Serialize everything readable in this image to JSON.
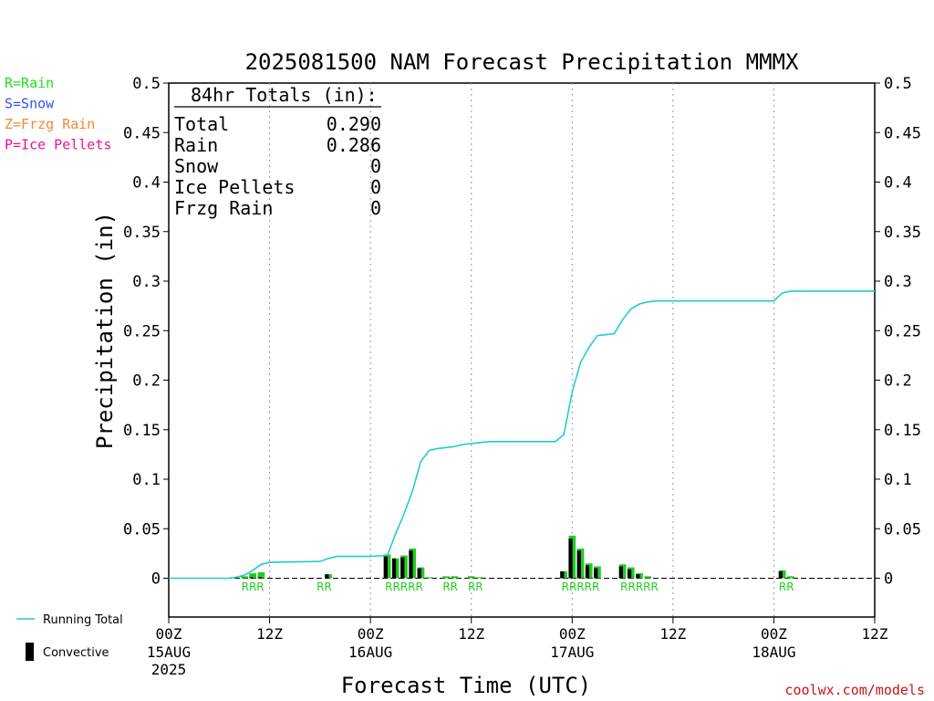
{
  "chart_data": {
    "type": "bar",
    "title": "2025081500 NAM Forecast Precipitation MMMX",
    "xlabel": "Forecast Time (UTC)",
    "ylabel": "Precipitation (in)",
    "ylim": [
      0,
      0.5
    ],
    "xlim_hours": [
      0,
      84
    ],
    "yticks": [
      "0",
      "0.05",
      "0.1",
      "0.15",
      "0.2",
      "0.25",
      "0.3",
      "0.35",
      "0.4",
      "0.45",
      "0.5"
    ],
    "xticks": [
      {
        "hour": 0,
        "label": "00Z",
        "date": "15AUG",
        "year": "2025"
      },
      {
        "hour": 12,
        "label": "12Z",
        "date": "",
        "year": ""
      },
      {
        "hour": 24,
        "label": "00Z",
        "date": "16AUG",
        "year": ""
      },
      {
        "hour": 36,
        "label": "12Z",
        "date": "",
        "year": ""
      },
      {
        "hour": 48,
        "label": "00Z",
        "date": "17AUG",
        "year": ""
      },
      {
        "hour": 60,
        "label": "12Z",
        "date": "",
        "year": ""
      },
      {
        "hour": 72,
        "label": "00Z",
        "date": "18AUG",
        "year": ""
      },
      {
        "hour": 84,
        "label": "12Z",
        "date": "",
        "year": ""
      }
    ],
    "grid": "vertical dotted at 12Z and 00Z",
    "legend_placement": "left",
    "precip_type_legend": [
      {
        "text": "R=Rain",
        "color": "#22dd22"
      },
      {
        "text": "S=Snow",
        "color": "#3355ee"
      },
      {
        "text": "Z=Frzg Rain",
        "color": "#ee8833"
      },
      {
        "text": "P=Ice Pellets",
        "color": "#ee1199"
      }
    ],
    "series_legend": [
      {
        "text": "Running Total",
        "color": "#22cccc",
        "kind": "line"
      },
      {
        "text": "Convective",
        "color": "#000000",
        "kind": "bar"
      }
    ],
    "totals_box": {
      "header": "84hr Totals (in):",
      "rows": [
        {
          "label": "Total",
          "value": "0.290"
        },
        {
          "label": "Rain",
          "value": "0.286"
        },
        {
          "label": "Snow",
          "value": "0"
        },
        {
          "label": "Ice Pellets",
          "value": "0"
        },
        {
          "label": "Frzg Rain",
          "value": "0"
        }
      ]
    },
    "bars": {
      "hours": [
        9,
        10,
        11,
        19,
        26,
        27,
        28,
        29,
        30,
        31,
        33,
        34,
        36,
        37,
        47,
        48,
        49,
        50,
        51,
        54,
        55,
        56,
        57,
        73,
        74
      ],
      "total": [
        0.002,
        0.005,
        0.006,
        0.004,
        0.024,
        0.02,
        0.023,
        0.03,
        0.011,
        0.001,
        0.002,
        0.002,
        0.002,
        0.001,
        0.007,
        0.043,
        0.03,
        0.015,
        0.012,
        0.014,
        0.011,
        0.005,
        0.002,
        0.008,
        0.002
      ],
      "convective": [
        0,
        0.001,
        0.001,
        0.004,
        0.022,
        0.02,
        0.021,
        0.028,
        0.01,
        0,
        0,
        0,
        0,
        0,
        0.007,
        0.04,
        0.028,
        0.013,
        0.01,
        0.012,
        0.009,
        0.004,
        0,
        0.007,
        0
      ],
      "color": "#22cc22",
      "convective_color": "#000000"
    },
    "running_total": {
      "hours": [
        0,
        7,
        8,
        9,
        10,
        11,
        12,
        18,
        19,
        20,
        24,
        26,
        27,
        28,
        29,
        30,
        31,
        32,
        33,
        34,
        35,
        36,
        37,
        38,
        46,
        47,
        48,
        49,
        50,
        51,
        52,
        53,
        54,
        55,
        56,
        57,
        58,
        59,
        60,
        71,
        72,
        73,
        74,
        84
      ],
      "values": [
        0,
        0,
        0.001,
        0.003,
        0.008,
        0.014,
        0.016,
        0.017,
        0.02,
        0.022,
        0.022,
        0.023,
        0.045,
        0.065,
        0.088,
        0.118,
        0.129,
        0.131,
        0.132,
        0.133,
        0.135,
        0.136,
        0.137,
        0.138,
        0.138,
        0.145,
        0.188,
        0.218,
        0.233,
        0.245,
        0.246,
        0.247,
        0.261,
        0.272,
        0.277,
        0.279,
        0.28,
        0.28,
        0.28,
        0.28,
        0.28,
        0.288,
        0.29,
        0.29
      ],
      "color": "#22cccc"
    },
    "type_labels": [
      {
        "hour_start": 9,
        "hour_end": 11,
        "text": "RRR"
      },
      {
        "hour_start": 18,
        "hour_end": 19,
        "text": "RR"
      },
      {
        "hour_start": 26,
        "hour_end": 30,
        "text": "RRRRR"
      },
      {
        "hour_start": 33,
        "hour_end": 34,
        "text": "RR"
      },
      {
        "hour_start": 36,
        "hour_end": 37,
        "text": "RR"
      },
      {
        "hour_start": 47,
        "hour_end": 51,
        "text": "RRRRR"
      },
      {
        "hour_start": 54,
        "hour_end": 58,
        "text": "RRRRR"
      },
      {
        "hour_start": 73,
        "hour_end": 74,
        "text": "RR"
      }
    ],
    "credit": "coolwx.com/models"
  }
}
